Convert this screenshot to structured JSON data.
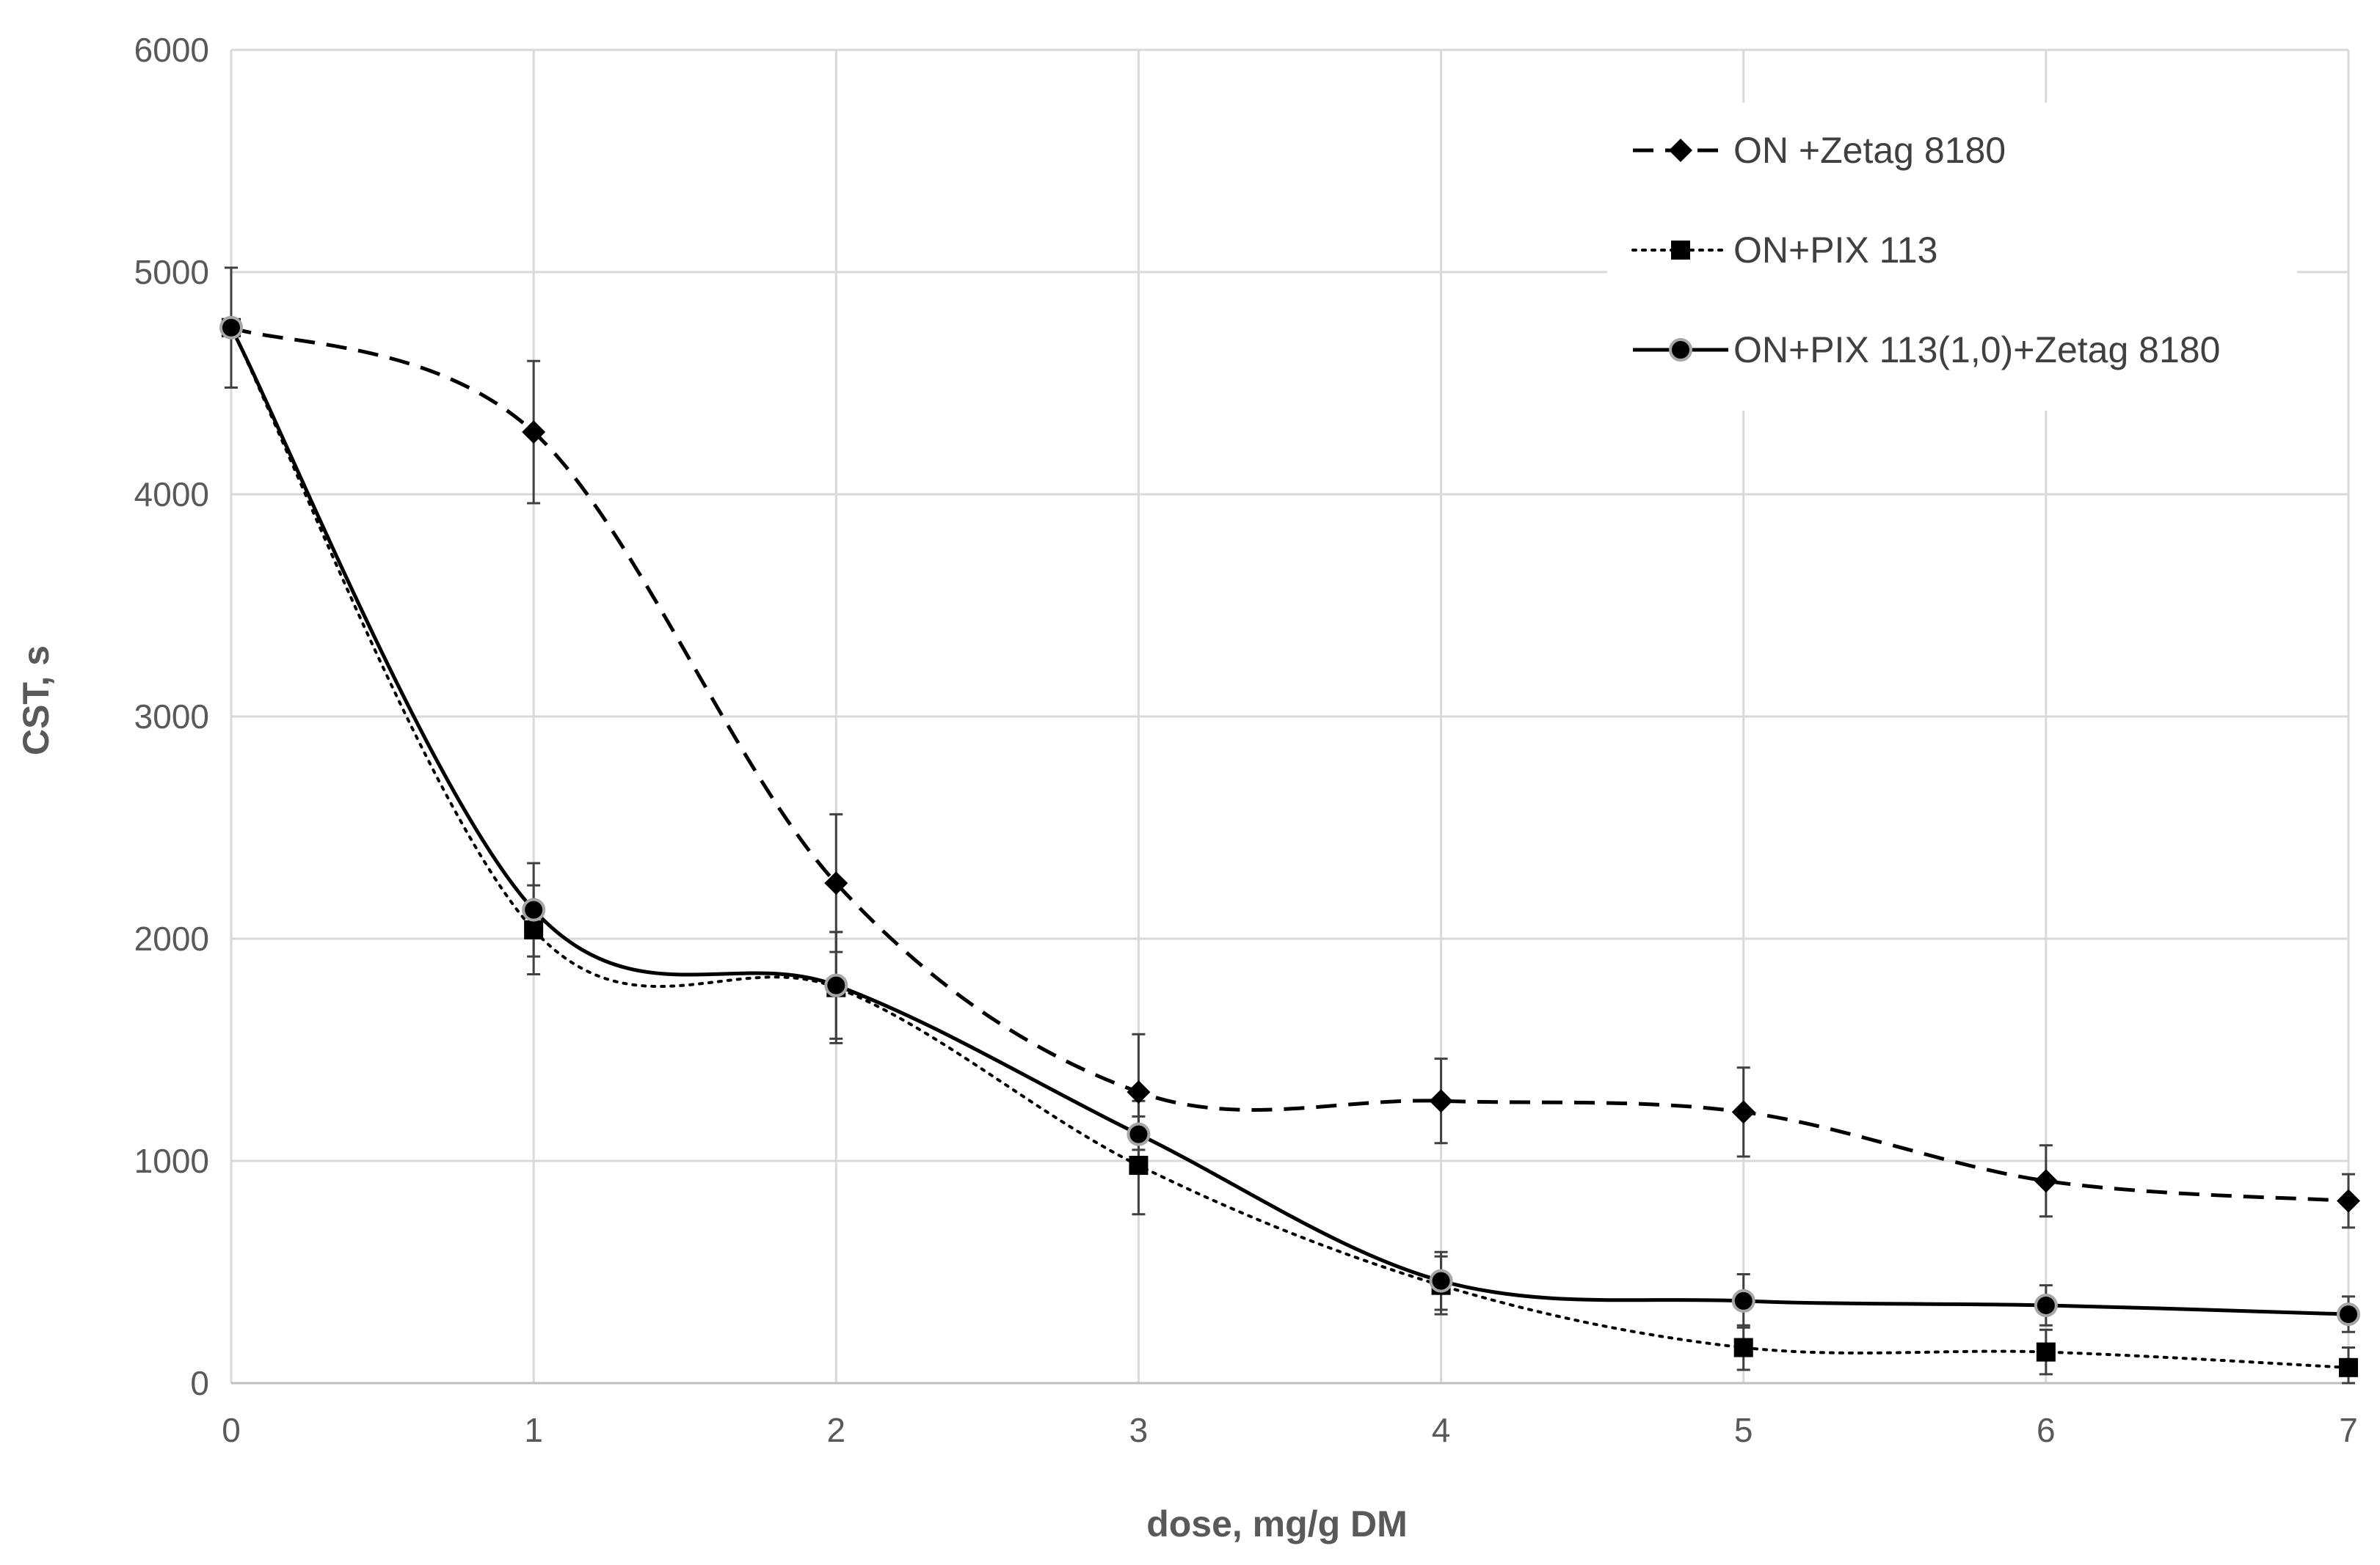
{
  "chart_data": {
    "type": "line",
    "title": "",
    "xlabel": "dose, mg/g DM",
    "ylabel": "CST, s",
    "x": [
      0,
      1,
      2,
      3,
      4,
      5,
      6,
      7
    ],
    "xlim": [
      0,
      7
    ],
    "ylim": [
      0,
      6000
    ],
    "x_ticks": [
      0,
      1,
      2,
      3,
      4,
      5,
      6,
      7
    ],
    "y_ticks": [
      0,
      1000,
      2000,
      3000,
      4000,
      5000,
      6000
    ],
    "grid": true,
    "legend_position": "top-right",
    "series": [
      {
        "name": "ON +Zetag 8180",
        "marker": "diamond",
        "line_style": "dashed",
        "values": [
          4750,
          4280,
          2250,
          1310,
          1270,
          1220,
          910,
          820
        ],
        "error": [
          270,
          320,
          310,
          260,
          190,
          200,
          160,
          120
        ]
      },
      {
        "name": "ON+PIX 113",
        "marker": "square",
        "line_style": "dotted",
        "values": [
          4750,
          2040,
          1780,
          980,
          440,
          160,
          140,
          70
        ],
        "error": [
          270,
          200,
          250,
          220,
          130,
          100,
          100,
          90
        ]
      },
      {
        "name": "ON+PIX 113(1,0)+Zetag 8180",
        "marker": "circle",
        "line_style": "solid",
        "values": [
          4750,
          2130,
          1790,
          1120,
          460,
          370,
          350,
          310
        ],
        "error": [
          270,
          210,
          240,
          150,
          130,
          120,
          90,
          80
        ]
      }
    ]
  }
}
